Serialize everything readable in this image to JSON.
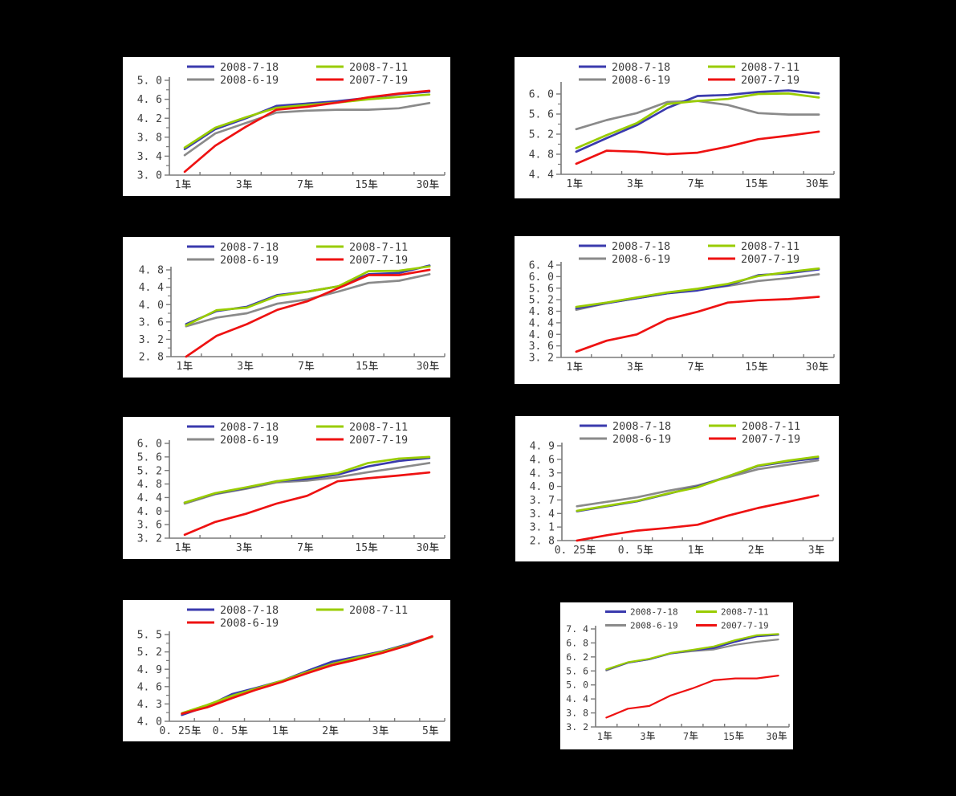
{
  "page": {
    "background": "#000000",
    "panel_background": "#ffffff",
    "text_color": "#3b3b3b",
    "axis_color": "#7a7a7a"
  },
  "colors": {
    "blue": "#3a3aad",
    "green": "#99cc00",
    "gray": "#8a8a8a",
    "red": "#ee1212"
  },
  "legend_dates": [
    "2008-7-18",
    "2008-7-11",
    "2008-6-19",
    "2007-7-19"
  ],
  "x_unit": "年",
  "chart_data": [
    {
      "id": "chart-1",
      "type": "line",
      "legend_position": "top",
      "x_points": [
        "1年",
        "2年",
        "3年",
        "5年",
        "7年",
        "10年",
        "15年",
        "20年",
        "30年"
      ],
      "x_labels": [
        "1年",
        "3年",
        "7年",
        "15年",
        "30年"
      ],
      "x_label_indices": [
        0,
        2,
        4,
        6,
        8
      ],
      "y_ticks": [
        3.0,
        3.4,
        3.8,
        4.2,
        4.6,
        5.0
      ],
      "series": [
        {
          "name": "2008-7-18",
          "color": "blue",
          "values": [
            3.55,
            3.97,
            4.2,
            4.46,
            4.51,
            4.56,
            4.63,
            4.71,
            4.76
          ]
        },
        {
          "name": "2008-7-11",
          "color": "green",
          "values": [
            3.58,
            4.0,
            4.22,
            4.42,
            4.48,
            4.53,
            4.6,
            4.65,
            4.7
          ]
        },
        {
          "name": "2008-6-19",
          "color": "gray",
          "values": [
            3.42,
            3.88,
            4.1,
            4.32,
            4.36,
            4.38,
            4.38,
            4.41,
            4.52
          ]
        },
        {
          "name": "2007-7-19",
          "color": "red",
          "values": [
            3.07,
            3.62,
            4.02,
            4.38,
            4.44,
            4.53,
            4.64,
            4.72,
            4.78
          ]
        }
      ]
    },
    {
      "id": "chart-2",
      "type": "line",
      "legend_position": "top",
      "x_points": [
        "1年",
        "2年",
        "3年",
        "5年",
        "7年",
        "10年",
        "15年",
        "20年",
        "30年"
      ],
      "x_labels": [
        "1年",
        "3年",
        "7年",
        "15年",
        "30年"
      ],
      "x_label_indices": [
        0,
        2,
        4,
        6,
        8
      ],
      "y_ticks": [
        4.4,
        4.8,
        5.2,
        5.6,
        6.0
      ],
      "series": [
        {
          "name": "2008-7-18",
          "color": "blue",
          "values": [
            4.85,
            5.12,
            5.38,
            5.72,
            5.96,
            5.98,
            6.04,
            6.07,
            6.01
          ]
        },
        {
          "name": "2008-7-11",
          "color": "green",
          "values": [
            4.92,
            5.18,
            5.42,
            5.8,
            5.86,
            5.9,
            6.0,
            6.01,
            5.93
          ]
        },
        {
          "name": "2008-6-19",
          "color": "gray",
          "values": [
            5.3,
            5.48,
            5.62,
            5.84,
            5.86,
            5.78,
            5.62,
            5.59,
            5.59
          ]
        },
        {
          "name": "2007-7-19",
          "color": "red",
          "values": [
            4.61,
            4.87,
            4.85,
            4.8,
            4.83,
            4.95,
            5.1,
            5.17,
            5.25
          ]
        }
      ]
    },
    {
      "id": "chart-3",
      "type": "line",
      "legend_position": "top",
      "x_points": [
        "1年",
        "2年",
        "3年",
        "5年",
        "7年",
        "10年",
        "15年",
        "20年",
        "30年"
      ],
      "x_labels": [
        "1年",
        "3年",
        "7年",
        "15年",
        "30年"
      ],
      "x_label_indices": [
        0,
        2,
        4,
        6,
        8
      ],
      "y_ticks": [
        2.8,
        3.2,
        3.6,
        4.0,
        4.4,
        4.8
      ],
      "series": [
        {
          "name": "2008-7-18",
          "color": "blue",
          "values": [
            3.55,
            3.85,
            3.95,
            4.22,
            4.3,
            4.42,
            4.7,
            4.73,
            4.9
          ]
        },
        {
          "name": "2008-7-11",
          "color": "green",
          "values": [
            3.52,
            3.87,
            3.93,
            4.2,
            4.3,
            4.42,
            4.77,
            4.78,
            4.88
          ]
        },
        {
          "name": "2008-6-19",
          "color": "gray",
          "values": [
            3.5,
            3.7,
            3.8,
            4.02,
            4.12,
            4.3,
            4.5,
            4.55,
            4.7
          ]
        },
        {
          "name": "2007-7-19",
          "color": "red",
          "values": [
            2.8,
            3.28,
            3.55,
            3.88,
            4.08,
            4.38,
            4.68,
            4.68,
            4.8
          ]
        }
      ]
    },
    {
      "id": "chart-4",
      "type": "line",
      "legend_position": "top",
      "x_points": [
        "1年",
        "2年",
        "3年",
        "5年",
        "7年",
        "10年",
        "15年",
        "20年",
        "30年"
      ],
      "x_labels": [
        "1年",
        "3年",
        "7年",
        "15年",
        "30年"
      ],
      "x_label_indices": [
        0,
        2,
        4,
        6,
        8
      ],
      "y_ticks": [
        3.2,
        3.6,
        4.0,
        4.4,
        4.8,
        5.2,
        5.6,
        6.0,
        6.4
      ],
      "series": [
        {
          "name": "2008-7-18",
          "color": "blue",
          "values": [
            4.9,
            5.08,
            5.25,
            5.42,
            5.52,
            5.7,
            6.05,
            6.12,
            6.25
          ]
        },
        {
          "name": "2008-7-11",
          "color": "green",
          "values": [
            4.95,
            5.1,
            5.28,
            5.45,
            5.58,
            5.75,
            6.02,
            6.16,
            6.28
          ]
        },
        {
          "name": "2008-6-19",
          "color": "gray",
          "values": [
            4.85,
            5.08,
            5.25,
            5.42,
            5.55,
            5.68,
            5.85,
            5.95,
            6.08
          ]
        },
        {
          "name": "2007-7-19",
          "color": "red",
          "values": [
            3.4,
            3.78,
            4.0,
            4.52,
            4.78,
            5.1,
            5.18,
            5.22,
            5.3
          ]
        }
      ]
    },
    {
      "id": "chart-5",
      "type": "line",
      "legend_position": "top",
      "x_points": [
        "1年",
        "2年",
        "3年",
        "5年",
        "7年",
        "10年",
        "15年",
        "20年",
        "30年"
      ],
      "x_labels": [
        "1年",
        "3年",
        "7年",
        "15年",
        "30年"
      ],
      "x_label_indices": [
        0,
        2,
        4,
        6,
        8
      ],
      "y_ticks": [
        3.2,
        3.6,
        4.0,
        4.4,
        4.8,
        5.2,
        5.6,
        6.0
      ],
      "series": [
        {
          "name": "2008-7-18",
          "color": "blue",
          "values": [
            4.25,
            4.52,
            4.68,
            4.88,
            4.95,
            5.08,
            5.32,
            5.48,
            5.57
          ]
        },
        {
          "name": "2008-7-11",
          "color": "green",
          "values": [
            4.25,
            4.53,
            4.7,
            4.88,
            5.0,
            5.12,
            5.42,
            5.55,
            5.6
          ]
        },
        {
          "name": "2008-6-19",
          "color": "gray",
          "values": [
            4.22,
            4.5,
            4.66,
            4.85,
            4.9,
            5.0,
            5.15,
            5.28,
            5.42
          ]
        },
        {
          "name": "2007-7-19",
          "color": "red",
          "values": [
            3.3,
            3.68,
            3.92,
            4.22,
            4.45,
            4.88,
            4.97,
            5.05,
            5.14
          ]
        }
      ]
    },
    {
      "id": "chart-6",
      "type": "line",
      "legend_position": "top",
      "x_points": [
        "0.25年",
        "0.375年",
        "0.5年",
        "0.75年",
        "1年",
        "1.5年",
        "2年",
        "2.5年",
        "3年"
      ],
      "x_labels": [
        "0.25年",
        "0.5年",
        "1年",
        "2年",
        "3年"
      ],
      "x_label_indices": [
        0,
        2,
        4,
        6,
        8
      ],
      "y_ticks": [
        2.8,
        3.1,
        3.4,
        3.7,
        4.0,
        4.3,
        4.6,
        4.9
      ],
      "series": [
        {
          "name": "2008-7-18",
          "color": "blue",
          "values": [
            3.45,
            3.56,
            3.67,
            3.83,
            4.0,
            4.22,
            4.45,
            4.55,
            4.63
          ]
        },
        {
          "name": "2008-7-11",
          "color": "green",
          "values": [
            3.46,
            3.57,
            3.68,
            3.84,
            3.98,
            4.22,
            4.46,
            4.57,
            4.66
          ]
        },
        {
          "name": "2008-6-19",
          "color": "gray",
          "values": [
            3.56,
            3.66,
            3.76,
            3.9,
            4.02,
            4.2,
            4.38,
            4.48,
            4.58
          ]
        },
        {
          "name": "2007-7-19",
          "color": "red",
          "values": [
            2.8,
            2.92,
            3.02,
            3.08,
            3.15,
            3.35,
            3.52,
            3.66,
            3.8
          ]
        }
      ]
    },
    {
      "id": "chart-7",
      "type": "line",
      "legend_position": "top",
      "x_points": [
        "0.25年",
        "0.375年",
        "0.5年",
        "0.75年",
        "1年",
        "1.5年",
        "2年",
        "2.5年",
        "3年",
        "4年",
        "5年"
      ],
      "x_labels": [
        "0.25年",
        "0.5年",
        "1年",
        "2年",
        "3年",
        "5年"
      ],
      "x_label_indices": [
        0,
        2,
        4,
        6,
        8,
        10
      ],
      "y_ticks": [
        4.0,
        4.3,
        4.6,
        4.9,
        5.2,
        5.5
      ],
      "series": [
        {
          "name": "2008-7-18",
          "color": "blue",
          "values": [
            4.11,
            4.26,
            4.47,
            4.58,
            4.7,
            4.87,
            5.03,
            5.12,
            5.21,
            5.33,
            5.46
          ]
        },
        {
          "name": "2008-7-11",
          "color": "green",
          "values": [
            4.14,
            4.28,
            4.44,
            4.57,
            4.7,
            4.85,
            4.99,
            5.1,
            5.2,
            5.32,
            5.46
          ]
        },
        {
          "name": "2008-6-19",
          "color": "red",
          "values": [
            4.13,
            4.24,
            4.4,
            4.55,
            4.68,
            4.83,
            4.97,
            5.07,
            5.18,
            5.31,
            5.47
          ]
        }
      ]
    },
    {
      "id": "chart-8",
      "type": "line",
      "legend_position": "top",
      "x_points": [
        "1年",
        "2年",
        "3年",
        "5年",
        "7年",
        "10年",
        "15年",
        "20年",
        "30年"
      ],
      "x_labels": [
        "1年",
        "3年",
        "7年",
        "15年",
        "30年"
      ],
      "x_label_indices": [
        0,
        2,
        4,
        6,
        8
      ],
      "y_ticks": [
        3.2,
        3.8,
        4.4,
        5.0,
        5.6,
        6.2,
        6.8,
        7.4
      ],
      "series": [
        {
          "name": "2008-7-18",
          "color": "blue",
          "values": [
            5.65,
            5.95,
            6.1,
            6.35,
            6.48,
            6.58,
            6.85,
            7.08,
            7.15
          ]
        },
        {
          "name": "2008-7-11",
          "color": "green",
          "values": [
            5.67,
            5.97,
            6.12,
            6.37,
            6.5,
            6.65,
            6.92,
            7.13,
            7.18
          ]
        },
        {
          "name": "2008-6-19",
          "color": "gray",
          "values": [
            5.62,
            5.95,
            6.1,
            6.35,
            6.45,
            6.52,
            6.72,
            6.85,
            6.95
          ]
        },
        {
          "name": "2007-7-19",
          "color": "red",
          "values": [
            3.6,
            3.98,
            4.1,
            4.55,
            4.85,
            5.2,
            5.28,
            5.28,
            5.4
          ]
        }
      ]
    }
  ]
}
